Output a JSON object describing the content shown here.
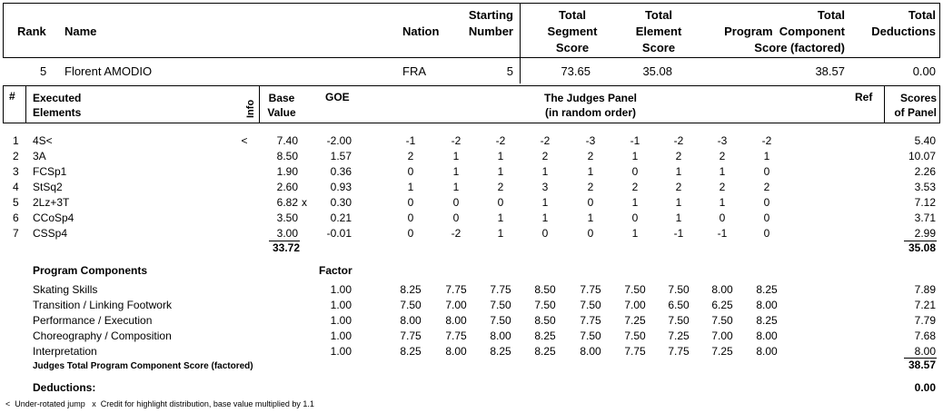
{
  "header": {
    "rank_label": "Rank",
    "name_label": "Name",
    "nation_label": "Nation",
    "starting_label_1": "Starting",
    "starting_label_2": "Number",
    "tss_1": "Total",
    "tss_2": "Segment",
    "tss_3": "Score",
    "tes_1": "Total",
    "tes_2": "Element",
    "tes_3": "Score",
    "pcs_1": "Total",
    "pcs_2": "Program  Component",
    "pcs_3": "Score (factored)",
    "ded_1": "Total",
    "ded_2": "Deductions"
  },
  "skater": {
    "rank": "5",
    "name": "Florent AMODIO",
    "nation": "FRA",
    "start": "5",
    "tss": "73.65",
    "tes": "35.08",
    "pcs": "38.57",
    "ded": "0.00"
  },
  "elements_header": {
    "num": "#",
    "exec_1": "Executed",
    "exec_2": "Elements",
    "info": "Info",
    "base_1": "Base",
    "base_2": "Value",
    "goe": "GOE",
    "panel_1": "The Judges Panel",
    "panel_2": "(in random order)",
    "ref": "Ref",
    "scores_1": "Scores",
    "scores_2": "of Panel"
  },
  "elements": [
    {
      "n": "1",
      "name": "4S<",
      "info": "<",
      "base": "7.40",
      "x": "",
      "goe": "-2.00",
      "j": [
        "-1",
        "-2",
        "-2",
        "-2",
        "-3",
        "-1",
        "-2",
        "-3",
        "-2"
      ],
      "score": "5.40"
    },
    {
      "n": "2",
      "name": "3A",
      "info": "",
      "base": "8.50",
      "x": "",
      "goe": "1.57",
      "j": [
        "2",
        "1",
        "1",
        "2",
        "2",
        "1",
        "2",
        "2",
        "1"
      ],
      "score": "10.07"
    },
    {
      "n": "3",
      "name": "FCSp1",
      "info": "",
      "base": "1.90",
      "x": "",
      "goe": "0.36",
      "j": [
        "0",
        "1",
        "1",
        "1",
        "1",
        "0",
        "1",
        "1",
        "0"
      ],
      "score": "2.26"
    },
    {
      "n": "4",
      "name": "StSq2",
      "info": "",
      "base": "2.60",
      "x": "",
      "goe": "0.93",
      "j": [
        "1",
        "1",
        "2",
        "3",
        "2",
        "2",
        "2",
        "2",
        "2"
      ],
      "score": "3.53"
    },
    {
      "n": "5",
      "name": "2Lz+3T",
      "info": "",
      "base": "6.82",
      "x": "x",
      "goe": "0.30",
      "j": [
        "0",
        "0",
        "0",
        "1",
        "0",
        "1",
        "1",
        "1",
        "0"
      ],
      "score": "7.12"
    },
    {
      "n": "6",
      "name": "CCoSp4",
      "info": "",
      "base": "3.50",
      "x": "",
      "goe": "0.21",
      "j": [
        "0",
        "0",
        "1",
        "1",
        "1",
        "0",
        "1",
        "0",
        "0"
      ],
      "score": "3.71"
    },
    {
      "n": "7",
      "name": "CSSp4",
      "info": "",
      "base": "3.00",
      "x": "",
      "goe": "-0.01",
      "j": [
        "0",
        "-2",
        "1",
        "0",
        "0",
        "1",
        "-1",
        "-1",
        "0"
      ],
      "score": "2.99"
    }
  ],
  "element_totals": {
    "base": "33.72",
    "score": "35.08"
  },
  "components_header": {
    "title": "Program Components",
    "factor": "Factor"
  },
  "components": [
    {
      "name": "Skating Skills",
      "factor": "1.00",
      "j": [
        "8.25",
        "7.75",
        "7.75",
        "8.50",
        "7.75",
        "7.50",
        "7.50",
        "8.00",
        "8.25"
      ],
      "score": "7.89"
    },
    {
      "name": "Transition / Linking Footwork",
      "factor": "1.00",
      "j": [
        "7.50",
        "7.00",
        "7.50",
        "7.50",
        "7.50",
        "7.00",
        "6.50",
        "6.25",
        "8.00"
      ],
      "score": "7.21"
    },
    {
      "name": "Performance / Execution",
      "factor": "1.00",
      "j": [
        "8.00",
        "8.00",
        "7.50",
        "8.50",
        "7.75",
        "7.25",
        "7.50",
        "7.50",
        "8.25"
      ],
      "score": "7.79"
    },
    {
      "name": "Choreography / Composition",
      "factor": "1.00",
      "j": [
        "7.75",
        "7.75",
        "8.00",
        "8.25",
        "7.50",
        "7.50",
        "7.25",
        "7.00",
        "8.00"
      ],
      "score": "7.68"
    },
    {
      "name": "Interpretation",
      "factor": "1.00",
      "j": [
        "8.25",
        "8.00",
        "8.25",
        "8.25",
        "8.00",
        "7.75",
        "7.75",
        "7.25",
        "8.00"
      ],
      "score": "8.00"
    }
  ],
  "pcs_total": {
    "label": "Judges Total Program Component Score (factored)",
    "value": "38.57"
  },
  "deductions": {
    "label": "Deductions:",
    "value": "0.00"
  },
  "footnote": "<  Under-rotated jump   x  Credit for highlight distribution, base value multiplied by 1.1"
}
